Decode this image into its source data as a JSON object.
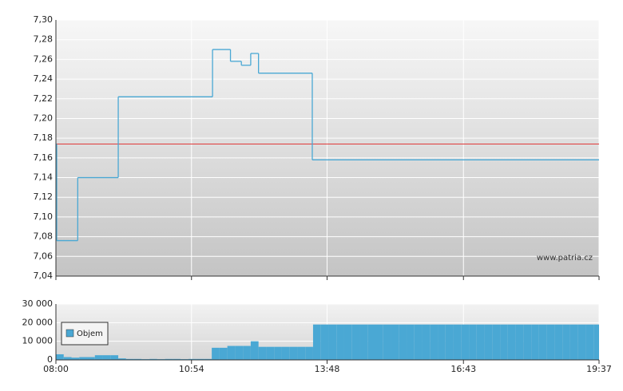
{
  "chart_data": [
    {
      "type": "step-line",
      "x": [
        "08:00",
        "08:01",
        "08:28",
        "09:20",
        "11:21",
        "11:44",
        "11:58",
        "12:10",
        "12:20",
        "13:29",
        "19:37"
      ],
      "values": [
        7.174,
        7.076,
        7.14,
        7.222,
        7.27,
        7.258,
        7.254,
        7.266,
        7.246,
        7.158,
        7.158
      ],
      "color": "#4aa8d4",
      "reference_line": {
        "value": 7.174,
        "color": "#e03a3a"
      },
      "xlim": [
        "08:00",
        "19:37"
      ],
      "ylim": [
        7.04,
        7.3
      ],
      "yticks": [
        {
          "value": 7.04,
          "label": "7,04"
        },
        {
          "value": 7.06,
          "label": "7,06"
        },
        {
          "value": 7.08,
          "label": "7,08"
        },
        {
          "value": 7.1,
          "label": "7,10"
        },
        {
          "value": 7.12,
          "label": "7,12"
        },
        {
          "value": 7.14,
          "label": "7,14"
        },
        {
          "value": 7.16,
          "label": "7,16"
        },
        {
          "value": 7.18,
          "label": "7,18"
        },
        {
          "value": 7.2,
          "label": "7,20"
        },
        {
          "value": 7.22,
          "label": "7,22"
        },
        {
          "value": 7.24,
          "label": "7,24"
        },
        {
          "value": 7.26,
          "label": "7,26"
        },
        {
          "value": 7.28,
          "label": "7,28"
        },
        {
          "value": 7.3,
          "label": "7,30"
        }
      ],
      "xticks": [
        "08:00",
        "10:54",
        "13:48",
        "16:43",
        "19:37"
      ],
      "grid": true,
      "annotation": "www.patria.cz"
    },
    {
      "type": "bar",
      "x": [
        "08:00",
        "08:10",
        "08:20",
        "08:30",
        "08:40",
        "08:50",
        "09:00",
        "09:10",
        "09:20",
        "09:30",
        "09:40",
        "09:50",
        "10:00",
        "10:10",
        "10:20",
        "10:30",
        "10:40",
        "10:50",
        "11:00",
        "11:10",
        "11:20",
        "11:30",
        "11:40",
        "11:50",
        "12:00",
        "12:10",
        "12:20",
        "12:30",
        "12:40",
        "12:50",
        "13:00",
        "13:10",
        "13:20",
        "13:30",
        "13:40",
        "13:50",
        "14:00",
        "14:10",
        "14:20",
        "14:30",
        "14:40",
        "14:50",
        "15:00",
        "15:10",
        "15:20",
        "15:30",
        "15:40",
        "15:50",
        "16:00",
        "16:10",
        "16:20",
        "16:30",
        "16:40",
        "16:50",
        "17:00",
        "17:10",
        "17:20",
        "17:30",
        "17:40",
        "17:50",
        "18:00",
        "18:10",
        "18:20",
        "18:30",
        "18:40",
        "18:50",
        "19:00",
        "19:10",
        "19:20",
        "19:30"
      ],
      "series": [
        {
          "name": "Objem",
          "color": "#4aa8d4",
          "values": [
            3000,
            1500,
            1200,
            1500,
            1500,
            2500,
            2500,
            2500,
            800,
            500,
            500,
            400,
            500,
            400,
            500,
            500,
            400,
            500,
            500,
            500,
            6500,
            6500,
            7500,
            7500,
            7500,
            10000,
            7000,
            7000,
            7000,
            7000,
            7000,
            7000,
            7000,
            19000,
            19000,
            19000,
            19000,
            19000,
            19000,
            19000,
            19000,
            19000,
            19000,
            19000,
            19000,
            19000,
            19000,
            19000,
            19000,
            19000,
            19000,
            19000,
            19000,
            19000,
            19000,
            19000,
            19000,
            19000,
            19000,
            19000,
            19000,
            19000,
            19000,
            19000,
            19000,
            19000,
            19000,
            19000,
            19000,
            19000
          ]
        }
      ],
      "xlim": [
        "08:00",
        "19:37"
      ],
      "ylim": [
        0,
        30000
      ],
      "yticks": [
        0,
        {
          "value": 10000,
          "label": "10 000"
        },
        {
          "value": 20000,
          "label": "20 000"
        },
        {
          "value": 30000,
          "label": "30 000"
        }
      ],
      "xticks": [
        "08:00",
        "10:54",
        "13:48",
        "16:43",
        "19:37"
      ],
      "grid": true
    }
  ]
}
